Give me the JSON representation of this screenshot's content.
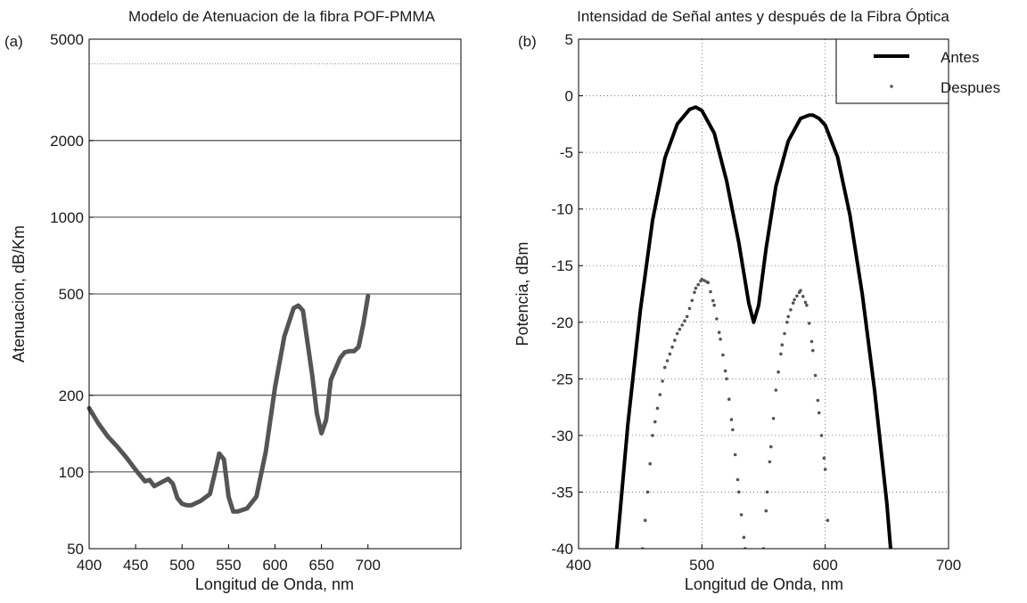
{
  "chart_data": [
    {
      "type": "line",
      "panel_label": "(a)",
      "title": "Modelo de Atenuacion de la fibra POF-PMMA",
      "xlabel": "Longitud de Onda, nm",
      "ylabel": "Atenuacion, dB/Km",
      "xlim": [
        400,
        800
      ],
      "ylim": [
        50,
        5000
      ],
      "yscale": "log",
      "xticks": [
        400,
        450,
        500,
        550,
        600,
        650,
        700
      ],
      "xtick_labels": [
        "400",
        "450",
        "500",
        "550",
        "600",
        "650",
        "700"
      ],
      "yticks": [
        50,
        100,
        200,
        500,
        1000,
        2000,
        5000
      ],
      "ytick_labels": [
        "50",
        "100",
        "200",
        "500",
        "1000",
        "2000",
        "5000"
      ],
      "grid": "major y only",
      "series": [
        {
          "name": "",
          "color": "#555555",
          "x": [
            400,
            410,
            420,
            430,
            440,
            450,
            460,
            465,
            470,
            480,
            485,
            490,
            495,
            500,
            505,
            510,
            520,
            530,
            535,
            540,
            545,
            550,
            555,
            560,
            570,
            580,
            590,
            600,
            610,
            620,
            625,
            630,
            640,
            645,
            650,
            655,
            660,
            670,
            675,
            680,
            685,
            690,
            695,
            700
          ],
          "y": [
            178,
            155,
            138,
            126,
            114,
            102,
            92,
            93,
            88,
            92,
            94,
            90,
            79,
            75,
            74,
            74,
            77,
            82,
            98,
            118,
            112,
            80,
            70,
            70,
            72,
            80,
            120,
            215,
            340,
            440,
            450,
            430,
            240,
            170,
            142,
            160,
            230,
            280,
            295,
            298,
            298,
            310,
            380,
            490
          ]
        }
      ]
    },
    {
      "type": "line",
      "panel_label": "(b)",
      "title": "Intensidad de Señal antes y después de la Fibra Óptica",
      "xlabel": "Longitud de Onda, nm",
      "ylabel": "Potencia, dBm",
      "xlim": [
        400,
        700
      ],
      "ylim": [
        -40,
        5
      ],
      "xticks": [
        400,
        500,
        600,
        700
      ],
      "xtick_labels": [
        "400",
        "500",
        "600",
        "700"
      ],
      "yticks": [
        -40,
        -35,
        -30,
        -25,
        -20,
        -15,
        -10,
        -5,
        0,
        5
      ],
      "ytick_labels": [
        "-40",
        "-35",
        "-30",
        "-25",
        "-20",
        "-15",
        "-10",
        "-5",
        "0",
        "5"
      ],
      "grid": "dotted",
      "legend": "top-right",
      "series": [
        {
          "name": "Antes",
          "style": "solid",
          "color": "#000000",
          "x": [
            431,
            440,
            450,
            460,
            470,
            480,
            490,
            495,
            500,
            510,
            520,
            530,
            538,
            542,
            546,
            552,
            560,
            570,
            580,
            587,
            590,
            595,
            600,
            610,
            620,
            630,
            640,
            650,
            653
          ],
          "y": [
            -40,
            -29,
            -19,
            -11,
            -5.5,
            -2.5,
            -1.2,
            -1,
            -1.3,
            -3.3,
            -7.5,
            -13,
            -18.3,
            -20,
            -18.5,
            -13.5,
            -8,
            -4,
            -2,
            -1.7,
            -1.7,
            -2,
            -2.6,
            -5.4,
            -10.5,
            -17.5,
            -26,
            -36,
            -40
          ]
        },
        {
          "name": "Despues",
          "style": "dots",
          "color": "#555555",
          "x": [
            452,
            460,
            470,
            480,
            488,
            495,
            500,
            505,
            510,
            515,
            520,
            525,
            530,
            535,
            540,
            550,
            553,
            556,
            560,
            565,
            570,
            575,
            580,
            585,
            590,
            595,
            600,
            602
          ],
          "y": [
            -40,
            -30,
            -24,
            -21,
            -19.5,
            -17,
            -16.2,
            -16.5,
            -18.5,
            -21.5,
            -25,
            -29.5,
            -35,
            -40,
            -43,
            -40,
            -35,
            -31,
            -26,
            -22,
            -19.5,
            -18,
            -17.2,
            -18.5,
            -22.5,
            -28,
            -33,
            -37.5
          ]
        }
      ]
    }
  ]
}
